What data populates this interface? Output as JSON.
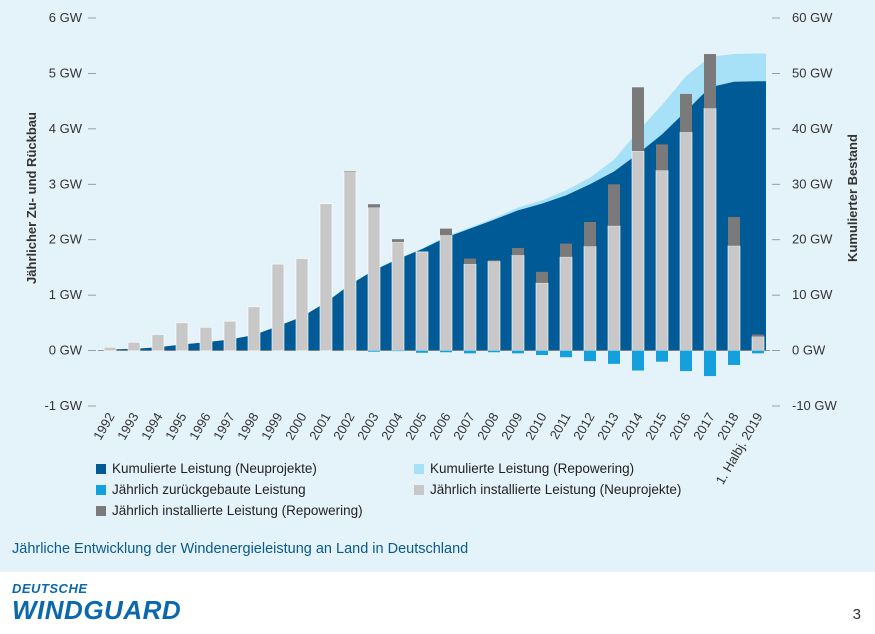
{
  "chart_data": {
    "type": "bar",
    "categories": [
      "1992",
      "1993",
      "1994",
      "1995",
      "1996",
      "1997",
      "1998",
      "1999",
      "2000",
      "2001",
      "2002",
      "2003",
      "2004",
      "2005",
      "2006",
      "2007",
      "2008",
      "2009",
      "2010",
      "2011",
      "2012",
      "2013",
      "2014",
      "2015",
      "2016",
      "2017",
      "2018",
      "1. Halbj. 2019"
    ],
    "left_axis": {
      "title": "Jährlicher Zu- und Rückbau",
      "range": [
        -1,
        6
      ],
      "unit": "GW",
      "ticks": [
        "-1 GW",
        "0 GW",
        "1 GW",
        "2 GW",
        "3 GW",
        "4 GW",
        "5 GW",
        "6 GW"
      ]
    },
    "right_axis": {
      "title": "Kumulierter Bestand",
      "range": [
        -10,
        60
      ],
      "unit": "GW",
      "ticks": [
        "-10 GW",
        "0 GW",
        "10 GW",
        "20 GW",
        "30 GW",
        "40 GW",
        "50 GW",
        "60 GW"
      ]
    },
    "series": [
      {
        "name": "Kumulierte Leistung (Neuprojekte)",
        "type": "area",
        "axis": "right",
        "color": "#005a96",
        "values": [
          0.2,
          0.3,
          0.6,
          1.1,
          1.5,
          2.0,
          2.8,
          4.4,
          6.1,
          8.7,
          11.9,
          14.5,
          16.5,
          18.3,
          20.4,
          22.0,
          23.6,
          25.3,
          26.5,
          28.0,
          30.0,
          32.3,
          35.5,
          39.0,
          43.2,
          47.5,
          48.5,
          48.6
        ]
      },
      {
        "name": "Kumulierte Leistung (Repowering)",
        "type": "area",
        "axis": "right",
        "color": "#a6e1f8",
        "values": [
          0.2,
          0.3,
          0.6,
          1.1,
          1.5,
          2.0,
          2.8,
          4.4,
          6.1,
          8.7,
          11.9,
          14.6,
          16.6,
          18.4,
          20.6,
          22.2,
          23.9,
          25.8,
          27.1,
          28.9,
          31.2,
          34.4,
          39.6,
          44.3,
          49.5,
          53.0,
          53.5,
          53.6
        ]
      },
      {
        "name": "Jährlich installierte Leistung (Neuprojekte)",
        "type": "bar",
        "axis": "left",
        "color": "#c8c8c8",
        "values": [
          0.06,
          0.15,
          0.29,
          0.5,
          0.42,
          0.53,
          0.79,
          1.56,
          1.66,
          2.65,
          3.23,
          2.58,
          1.96,
          1.78,
          2.08,
          1.56,
          1.61,
          1.72,
          1.22,
          1.69,
          1.88,
          2.25,
          3.6,
          3.25,
          3.94,
          4.37,
          1.89,
          0.25
        ]
      },
      {
        "name": "Jährlich installierte Leistung (Repowering)",
        "type": "bar",
        "axis": "left",
        "color": "#7a7a7a",
        "values": [
          0,
          0,
          0,
          0,
          0,
          0,
          0,
          0,
          0,
          0,
          0.01,
          0.06,
          0.05,
          0,
          0.12,
          0.1,
          0.02,
          0.13,
          0.2,
          0.24,
          0.44,
          0.75,
          1.15,
          0.47,
          0.69,
          0.98,
          0.52,
          0.04
        ]
      },
      {
        "name": "Jährlich zurückgebaute Leistung",
        "type": "bar",
        "axis": "left",
        "color": "#13a0dc",
        "values": [
          0,
          0,
          0,
          0,
          0,
          0,
          0,
          0,
          0,
          0,
          0,
          -0.02,
          -0.01,
          -0.04,
          -0.03,
          -0.05,
          -0.03,
          -0.05,
          -0.08,
          -0.12,
          -0.19,
          -0.24,
          -0.36,
          -0.2,
          -0.37,
          -0.46,
          -0.26,
          -0.05
        ]
      }
    ],
    "legend": [
      {
        "label": "Kumulierte Leistung (Neuprojekte)",
        "color": "#005a96"
      },
      {
        "label": "Kumulierte Leistung (Repowering)",
        "color": "#a6e1f8"
      },
      {
        "label": "Jährlich zurückgebaute Leistung",
        "color": "#13a0dc"
      },
      {
        "label": "Jährlich installierte Leistung (Neuprojekte)",
        "color": "#c8c8c8"
      },
      {
        "label": "Jährlich installierte Leistung (Repowering)",
        "color": "#7a7a7a"
      }
    ],
    "legend_placement": "bottom-left",
    "grid": false
  },
  "caption": "Jährliche Entwicklung der Windenergieleistung an Land in Deutschland",
  "logo": {
    "line1": "DEUTSCHE",
    "line2": "WINDGUARD"
  },
  "page_number": "3"
}
